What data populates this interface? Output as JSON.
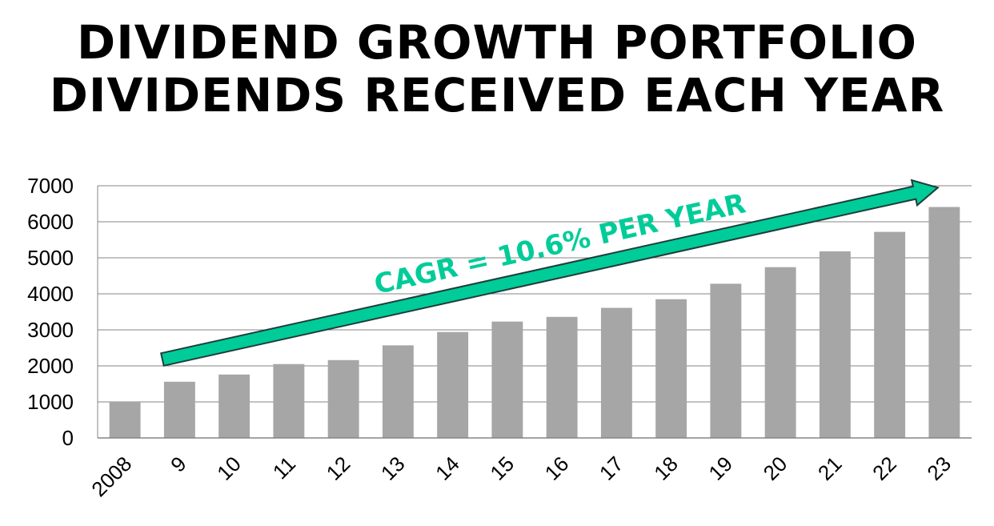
{
  "title_line_1": "DIVIDEND GROWTH PORTFOLIO",
  "title_line_2": "DIVIDENDS RECEIVED EACH YEAR",
  "chart_data": {
    "type": "bar",
    "title": "DIVIDEND GROWTH PORTFOLIO DIVIDENDS RECEIVED EACH YEAR",
    "categories": [
      "2008",
      "9",
      "10",
      "11",
      "12",
      "13",
      "14",
      "15",
      "16",
      "17",
      "18",
      "19",
      "20",
      "21",
      "22",
      "23"
    ],
    "values": [
      1000,
      1560,
      1760,
      2050,
      2160,
      2570,
      2940,
      3230,
      3360,
      3610,
      3850,
      4280,
      4740,
      5180,
      5720,
      6410
    ],
    "ylim": [
      0,
      7000
    ],
    "yticks": [
      0,
      1000,
      2000,
      3000,
      4000,
      5000,
      6000,
      7000
    ],
    "xlabel": "",
    "ylabel": "",
    "grid": true,
    "bar_color": "#a6a6a6",
    "grid_color": "#868686",
    "annotation": {
      "text": "CAGR = 10.6% PER YEAR",
      "color": "#00cc99",
      "arrow_color": "#00cc99",
      "arrow_outline": "#1f3d3a",
      "arrow_from": {
        "category": "9",
        "value": 2000
      },
      "arrow_to": {
        "category": "23",
        "value": 6950
      }
    }
  }
}
